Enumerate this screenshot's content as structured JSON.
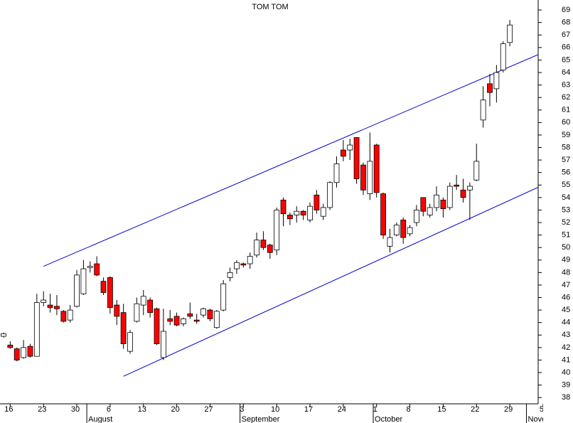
{
  "chart_data": {
    "type": "candlestick",
    "title": "TOM TOM",
    "categories": [
      null,
      "16",
      null,
      null,
      null,
      null,
      "23",
      null,
      null,
      null,
      null,
      "30",
      null,
      null,
      null,
      null,
      "6",
      null,
      null,
      null,
      null,
      "13",
      null,
      null,
      null,
      null,
      "20",
      null,
      null,
      null,
      null,
      "27",
      null,
      null,
      null,
      null,
      "3",
      null,
      null,
      null,
      null,
      "10",
      null,
      null,
      null,
      null,
      "17",
      null,
      null,
      null,
      null,
      "24",
      null,
      null,
      null,
      null,
      "1",
      null,
      null,
      null,
      null,
      "8",
      null,
      null,
      null,
      null,
      "15",
      null,
      null,
      null,
      null,
      "22",
      null,
      null,
      null,
      null,
      "29",
      null,
      null,
      null,
      null,
      "5"
    ],
    "months": [
      null,
      null,
      null,
      null,
      null,
      null,
      null,
      null,
      null,
      null,
      null,
      null,
      null,
      "August",
      null,
      null,
      null,
      null,
      null,
      null,
      null,
      null,
      null,
      null,
      null,
      null,
      null,
      null,
      null,
      null,
      null,
      null,
      null,
      null,
      null,
      null,
      "September",
      null,
      null,
      null,
      null,
      null,
      null,
      null,
      null,
      null,
      null,
      null,
      null,
      null,
      null,
      null,
      null,
      null,
      null,
      null,
      "October",
      null,
      null,
      null,
      null,
      null,
      null,
      null,
      null,
      null,
      null,
      null,
      null,
      null,
      null,
      null,
      null,
      null,
      null,
      null,
      null,
      null,
      null,
      "November",
      null,
      null
    ],
    "open": [
      42.9,
      42.2,
      41.9,
      41.2,
      42.1,
      41.3,
      45.6,
      45.4,
      45.3,
      44.9,
      44.2,
      45.3,
      46.3,
      48.4,
      48.7,
      47.3,
      47.6,
      45.4,
      44.8,
      41.7,
      44.1,
      45.4,
      45.8,
      45.1,
      41.2,
      44.3,
      44.5,
      43.9,
      44.7,
      44.2,
      44.6,
      45.0,
      43.6,
      45.0,
      47.6,
      48.3,
      48.7,
      48.7,
      49.4,
      50.6,
      50.2,
      49.8,
      53.8,
      52.6,
      52.6,
      52.9,
      52.2,
      54.2,
      52.5,
      53.2,
      55.2,
      57.8,
      57.8,
      58.8,
      56.6,
      54.3,
      58.2,
      54.3,
      50.1,
      51.0,
      52.2,
      51.1,
      52.0,
      54.0,
      52.6,
      53.2,
      53.8,
      53.2,
      55.0,
      54.6,
      54.6,
      55.4,
      60.2,
      63.1,
      62.7,
      64.2,
      66.4,
      null,
      null,
      null,
      null,
      null
    ],
    "high": [
      43.2,
      42.5,
      42.0,
      42.6,
      42.3,
      46.3,
      46.5,
      46.3,
      46.2,
      45.0,
      45.4,
      48.2,
      49.0,
      48.9,
      49.3,
      47.6,
      47.7,
      45.8,
      45.5,
      43.4,
      46.0,
      46.6,
      46.0,
      45.2,
      45.1,
      45.0,
      44.8,
      44.4,
      45.6,
      44.7,
      45.2,
      45.1,
      45.0,
      47.4,
      48.4,
      49.0,
      48.8,
      49.6,
      51.2,
      51.3,
      50.3,
      53.2,
      54.0,
      52.8,
      53.3,
      53.0,
      53.6,
      54.6,
      53.5,
      55.3,
      57.3,
      58.6,
      58.7,
      58.8,
      56.8,
      59.2,
      58.3,
      54.4,
      51.5,
      52.0,
      52.4,
      51.8,
      53.4,
      54.0,
      53.5,
      54.9,
      54.0,
      55.2,
      55.8,
      55.5,
      55.2,
      58.3,
      62.9,
      63.9,
      64.6,
      66.5,
      68.2,
      null,
      null,
      null,
      null,
      null
    ],
    "low": [
      42.8,
      41.9,
      40.9,
      41.1,
      41.2,
      41.3,
      45.3,
      44.8,
      44.6,
      44.0,
      44.0,
      45.2,
      46.2,
      48.0,
      47.7,
      46.2,
      44.7,
      43.8,
      41.9,
      41.5,
      44.0,
      44.6,
      44.4,
      42.2,
      41.0,
      43.8,
      43.7,
      43.7,
      44.3,
      43.9,
      44.4,
      44.1,
      43.5,
      44.9,
      47.3,
      47.9,
      48.4,
      48.3,
      49.2,
      49.8,
      49.1,
      49.4,
      51.7,
      51.8,
      52.0,
      52.2,
      52.0,
      52.7,
      52.2,
      53.0,
      54.8,
      56.9,
      57.0,
      55.1,
      54.2,
      53.8,
      54.0,
      50.7,
      49.6,
      50.9,
      50.3,
      50.9,
      51.7,
      52.5,
      52.4,
      52.9,
      52.4,
      53.0,
      54.6,
      53.6,
      52.2,
      55.3,
      59.6,
      61.3,
      61.6,
      64.0,
      66.1,
      null,
      null,
      null,
      null,
      null
    ],
    "close": [
      43.1,
      42.0,
      41.0,
      42.0,
      41.3,
      45.6,
      45.8,
      45.2,
      45.1,
      44.1,
      45.0,
      47.8,
      48.3,
      48.5,
      47.8,
      46.4,
      45.2,
      44.5,
      42.3,
      43.2,
      45.5,
      46.1,
      44.8,
      42.3,
      43.3,
      44.1,
      43.8,
      44.3,
      44.5,
      44.1,
      45.1,
      44.3,
      44.9,
      47.1,
      48.0,
      48.8,
      48.6,
      49.3,
      50.6,
      50.0,
      49.6,
      53.0,
      52.7,
      52.3,
      52.9,
      52.6,
      53.3,
      53.0,
      53.2,
      55.2,
      56.7,
      57.3,
      58.2,
      55.5,
      54.6,
      56.9,
      54.4,
      51.0,
      50.8,
      51.8,
      50.8,
      51.6,
      53.0,
      52.9,
      53.2,
      54.2,
      53.1,
      54.9,
      54.9,
      54.0,
      54.9,
      56.9,
      61.8,
      62.4,
      64.0,
      66.3,
      67.8,
      null,
      null,
      null,
      null,
      null
    ],
    "up_color": "#ffffff",
    "down_color": "#ff0000",
    "line_color": "#0000cc",
    "trendlines": [
      {
        "from": [
          6,
          48.5
        ],
        "to": [
          81,
          65.6
        ]
      },
      {
        "from": [
          18,
          39.7
        ],
        "to": [
          81,
          55.0
        ]
      }
    ],
    "ylim": [
      37.5,
      69.8
    ],
    "yticks": [
      38,
      39,
      40,
      41,
      42,
      43,
      44,
      45,
      46,
      47,
      48,
      49,
      50,
      51,
      52,
      53,
      54,
      55,
      56,
      57,
      58,
      59,
      60,
      61,
      62,
      63,
      64,
      65,
      66,
      67,
      68,
      69
    ]
  }
}
